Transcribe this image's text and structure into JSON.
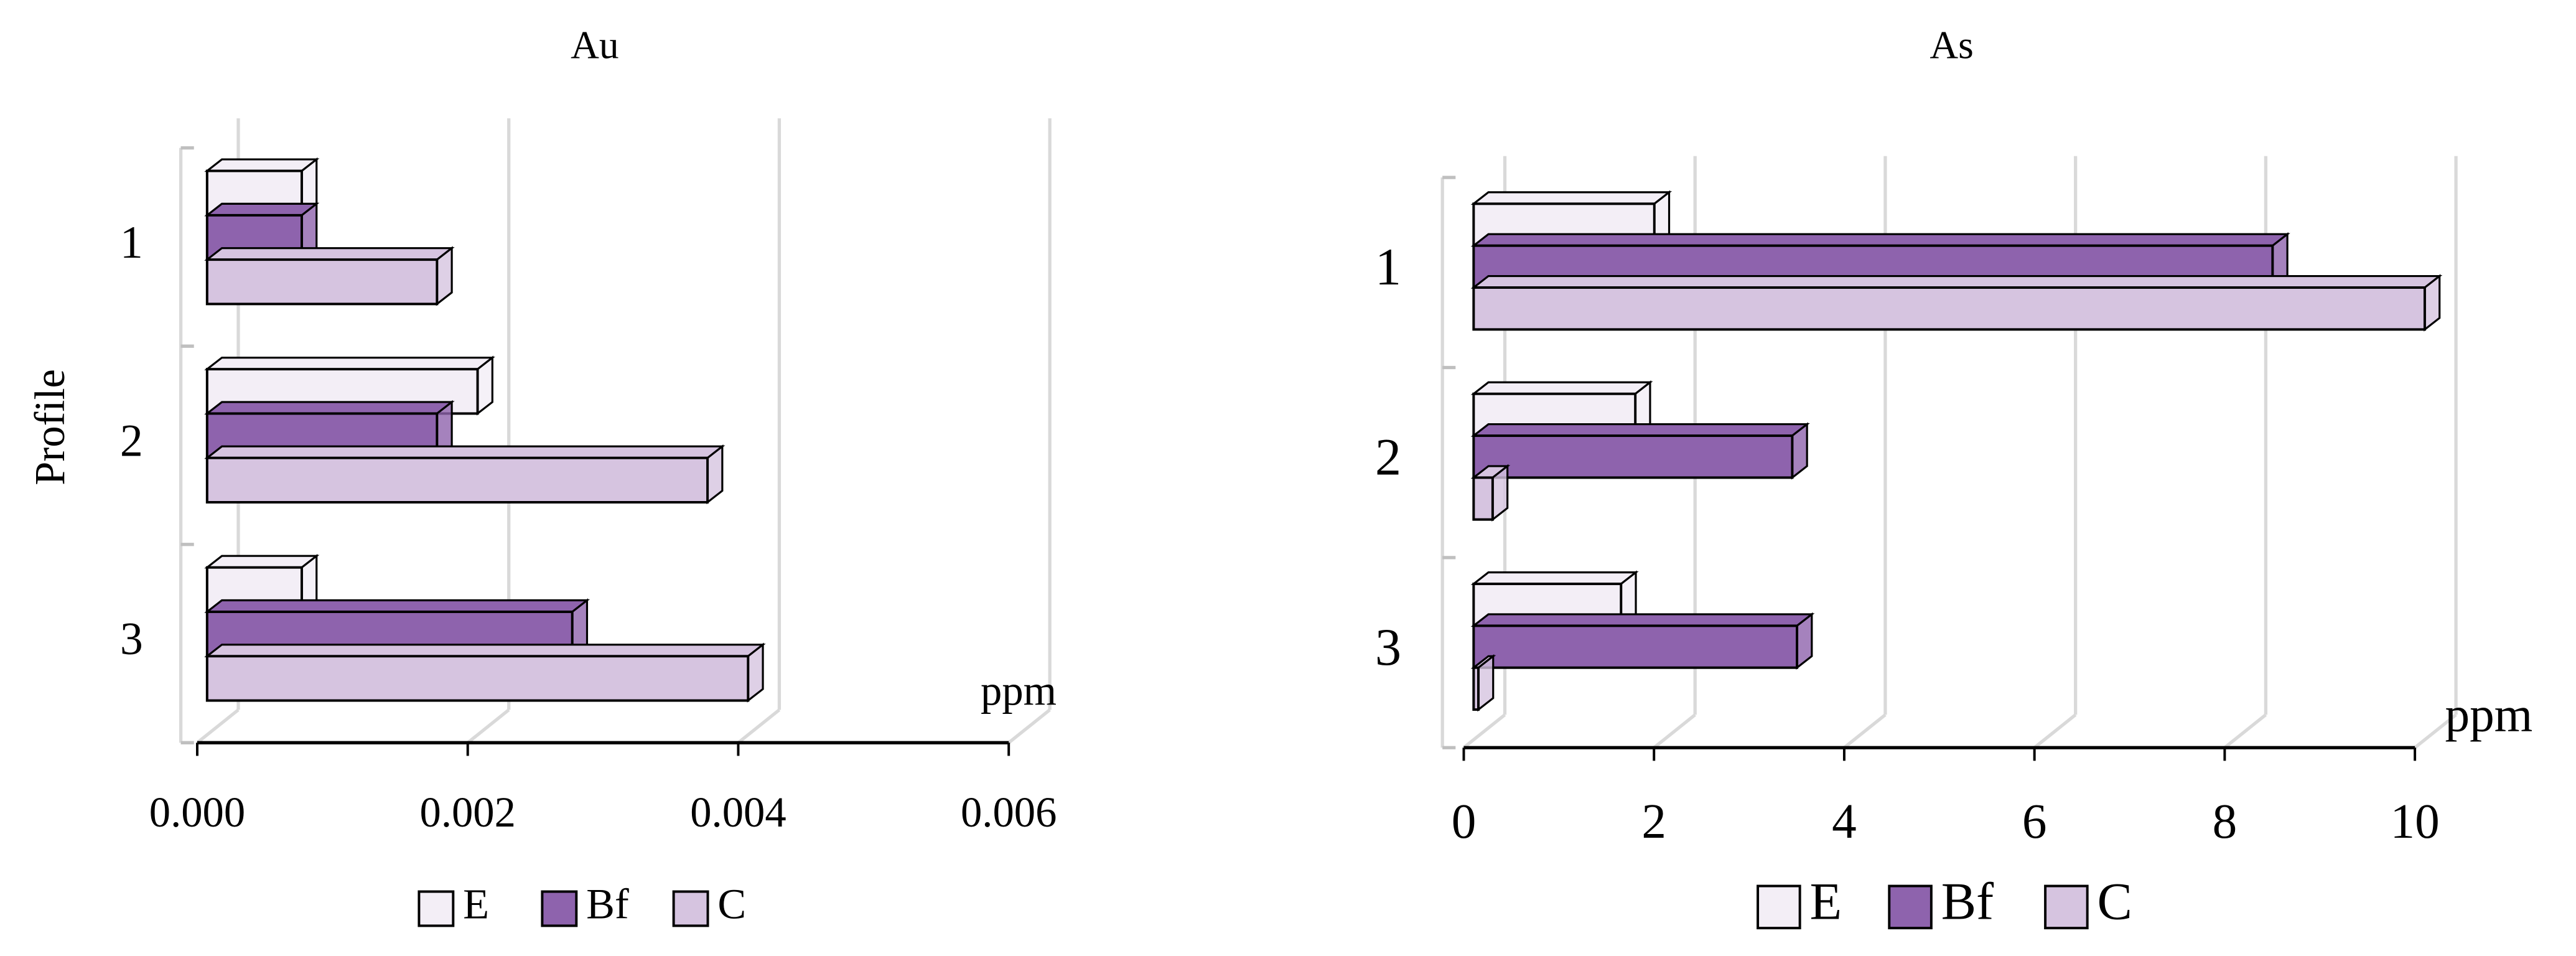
{
  "chart_data": [
    {
      "type": "bar",
      "orientation": "horizontal",
      "title": "Au",
      "y_label": "Profile",
      "x_label": "ppm",
      "categories": [
        "1",
        "2",
        "3"
      ],
      "series": [
        {
          "name": "E",
          "color": "#f3eef6",
          "values": [
            0.0007,
            0.002,
            0.0007
          ]
        },
        {
          "name": "Bf",
          "color": "#8e63ad",
          "values": [
            0.0007,
            0.0017,
            0.0027
          ]
        },
        {
          "name": "C",
          "color": "#d6c4e0",
          "values": [
            0.0017,
            0.0037,
            0.004
          ]
        }
      ],
      "xlim": [
        0,
        0.006
      ],
      "xticks": [
        {
          "value": 0,
          "label": "0.000"
        },
        {
          "value": 0.002,
          "label": "0.002"
        },
        {
          "value": 0.004,
          "label": "0.004"
        },
        {
          "value": 0.006,
          "label": "0.006"
        }
      ],
      "grid": true,
      "legend": "bottom"
    },
    {
      "type": "bar",
      "orientation": "horizontal",
      "title": "As",
      "x_label": "ppm",
      "categories": [
        "1",
        "2",
        "3"
      ],
      "series": [
        {
          "name": "E",
          "color": "#f3eef6",
          "values": [
            1.9,
            1.7,
            1.55
          ]
        },
        {
          "name": "Bf",
          "color": "#8e63ad",
          "values": [
            8.4,
            3.35,
            3.4
          ]
        },
        {
          "name": "C",
          "color": "#d6c4e0",
          "values": [
            10,
            0.2,
            0.05
          ]
        }
      ],
      "xlim": [
        0,
        10
      ],
      "xticks": [
        0,
        2,
        4,
        6,
        8,
        10
      ],
      "grid": true,
      "legend": "bottom"
    }
  ]
}
